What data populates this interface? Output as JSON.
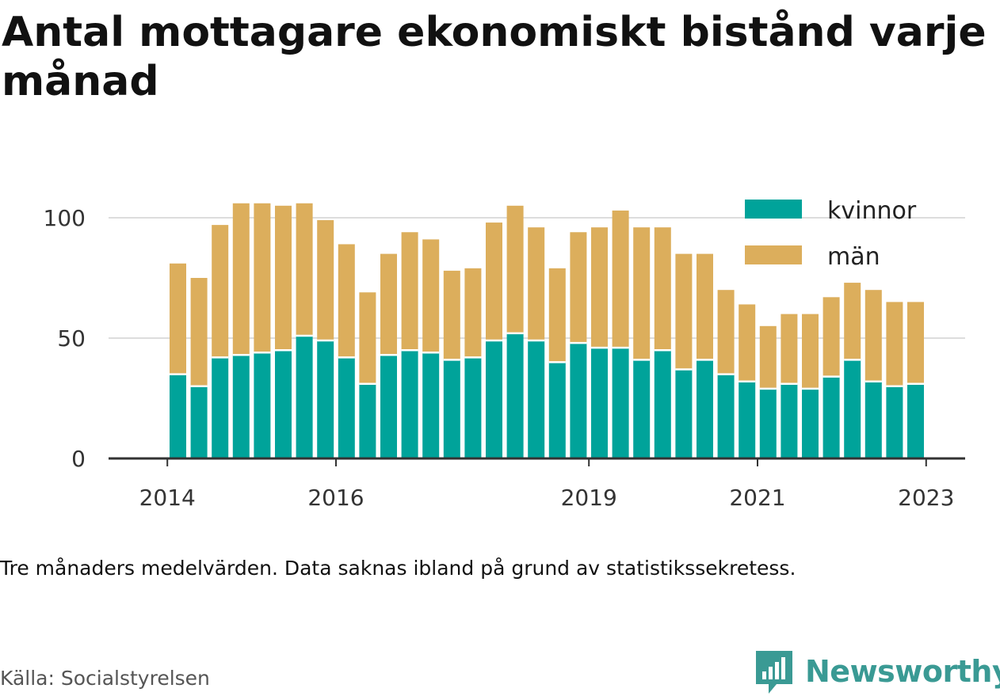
{
  "chart_data": {
    "type": "bar",
    "stacked": true,
    "title": "Antal mottagare ekonomiskt bistånd varje månad",
    "note": "Tre månaders medelvärden. Data saknas ibland på grund av statistikssekretess.",
    "source": "Källa: Socialstyrelsen",
    "brand": "Newsworthy",
    "ylim": [
      0,
      110
    ],
    "y_ticks": [
      0,
      50,
      100
    ],
    "x_ticks": [
      {
        "label": "2014",
        "after_bar": -1
      },
      {
        "label": "2016",
        "after_bar": 7
      },
      {
        "label": "2019",
        "after_bar": 19
      },
      {
        "label": "2021",
        "after_bar": 27
      },
      {
        "label": "2023",
        "after_bar": 35
      }
    ],
    "legend": {
      "position": "top-right"
    },
    "series": [
      {
        "name": "kvinnor",
        "color": "#00a39a",
        "values": [
          35,
          30,
          42,
          43,
          44,
          45,
          51,
          49,
          42,
          31,
          43,
          45,
          44,
          41,
          42,
          49,
          52,
          49,
          40,
          48,
          46,
          46,
          41,
          45,
          37,
          41,
          35,
          32,
          29,
          31,
          29,
          34,
          41,
          32,
          30,
          31
        ]
      },
      {
        "name": "män",
        "color": "#dcae5c",
        "values": [
          46,
          45,
          55,
          63,
          62,
          60,
          55,
          50,
          47,
          38,
          42,
          49,
          47,
          37,
          37,
          49,
          53,
          47,
          39,
          46,
          50,
          57,
          55,
          51,
          48,
          44,
          35,
          32,
          26,
          29,
          31,
          33,
          32,
          38,
          35,
          34
        ]
      }
    ]
  }
}
